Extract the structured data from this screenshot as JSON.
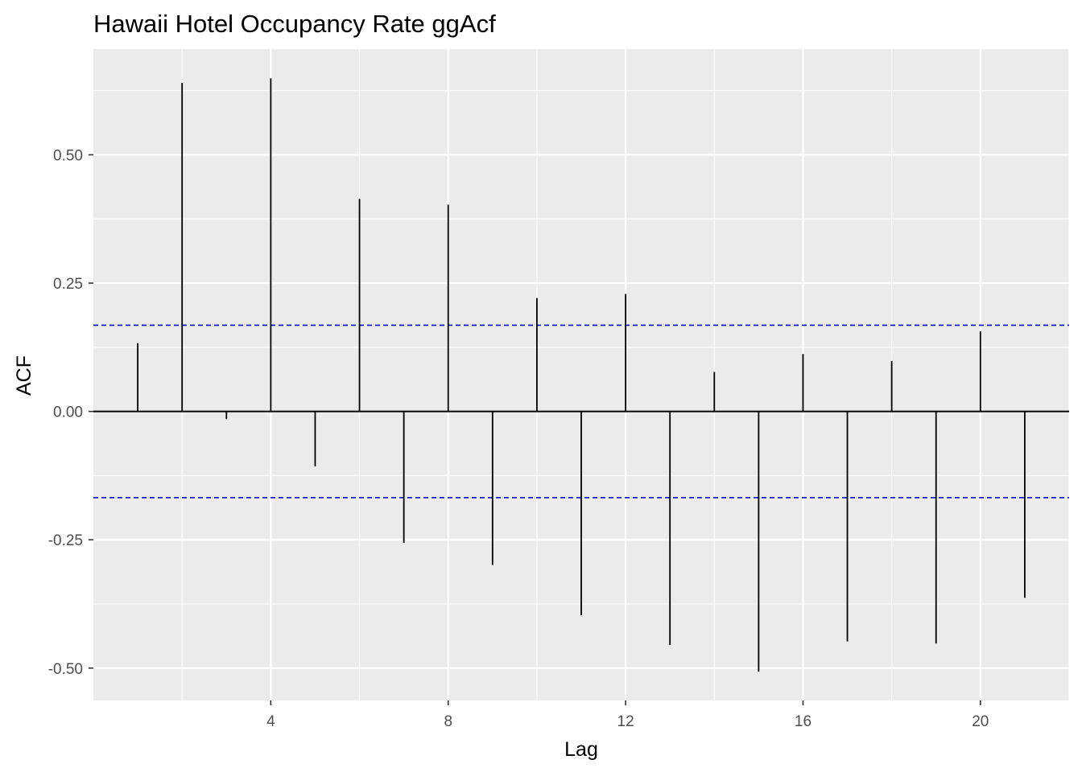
{
  "chart_data": {
    "type": "bar",
    "title": "Hawaii Hotel Occupancy Rate ggAcf",
    "xlabel": "Lag",
    "ylabel": "ACF",
    "x": [
      1,
      2,
      3,
      4,
      5,
      6,
      7,
      8,
      9,
      10,
      11,
      12,
      13,
      14,
      15,
      16,
      17,
      18,
      19,
      20,
      21
    ],
    "values": [
      0.133,
      0.64,
      -0.015,
      0.649,
      -0.107,
      0.414,
      -0.256,
      0.403,
      -0.299,
      0.221,
      -0.397,
      0.229,
      -0.455,
      0.077,
      -0.507,
      0.112,
      -0.448,
      0.098,
      -0.452,
      0.156,
      -0.363
    ],
    "confidence_bound": 0.168,
    "xlim": [
      0.0,
      22.0
    ],
    "ylim": [
      -0.563,
      0.706
    ],
    "x_ticks": [
      4,
      8,
      12,
      16,
      20
    ],
    "x_tick_labels": [
      "4",
      "8",
      "12",
      "16",
      "20"
    ],
    "y_ticks": [
      -0.5,
      -0.25,
      0.0,
      0.25,
      0.5
    ],
    "y_tick_labels": [
      "-0.50",
      "-0.25",
      "0.00",
      "0.25",
      "0.50"
    ],
    "grid": true,
    "legend": "none",
    "colors": {
      "panel_background": "#ebebeb",
      "grid_line": "#ffffff",
      "spike": "#000000",
      "zero_line": "#000000",
      "confidence_line": "#0000cc",
      "tick_label": "#4d4d4d"
    }
  }
}
